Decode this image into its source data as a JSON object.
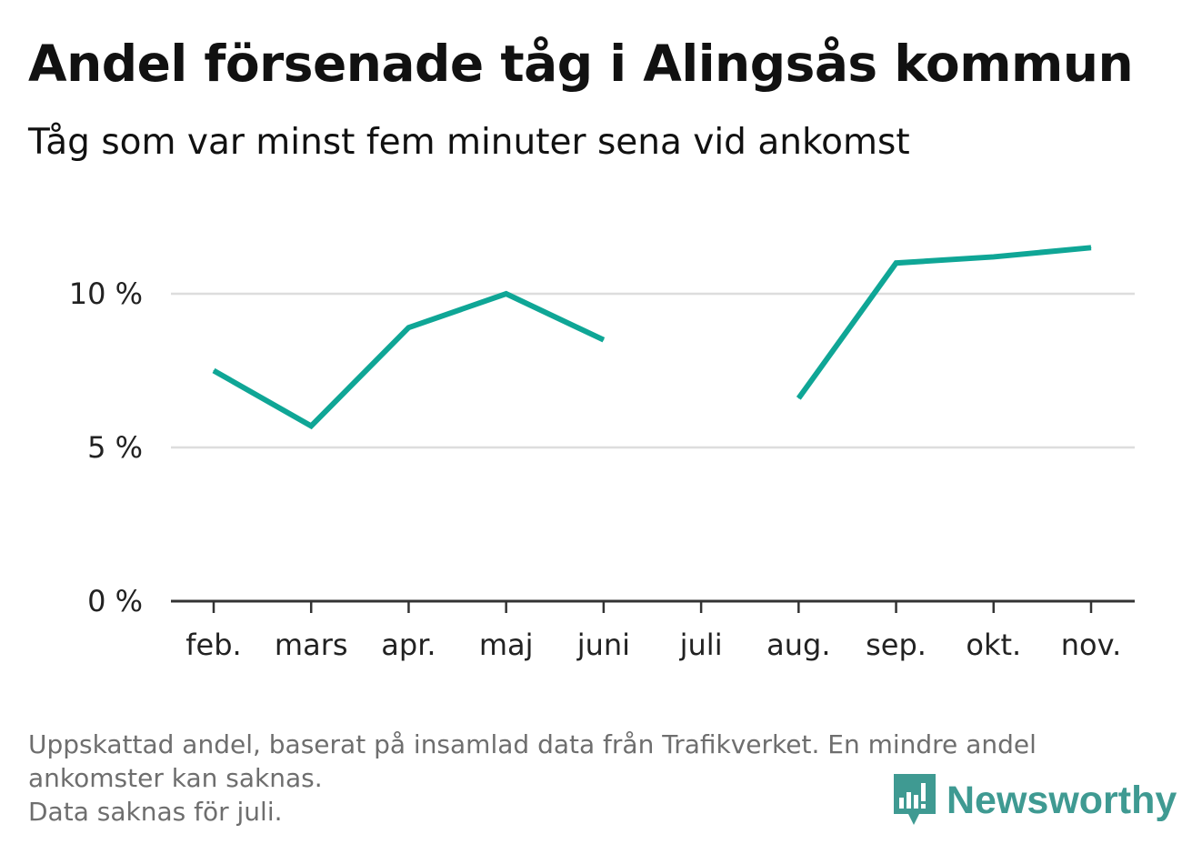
{
  "header": {
    "title": "Andel försenade tåg i Alingsås kommun",
    "subtitle": "Tåg som var minst fem minuter sena vid ankomst"
  },
  "chart_data": {
    "type": "line",
    "categories": [
      "feb.",
      "mars",
      "apr.",
      "maj",
      "juni",
      "juli",
      "aug.",
      "sep.",
      "okt.",
      "nov."
    ],
    "series": [
      {
        "values": [
          7.5,
          5.7,
          8.9,
          10.0,
          8.5,
          null,
          6.6,
          11.0,
          11.2,
          11.5
        ],
        "color": "#0fa696"
      }
    ],
    "y_ticks": [
      0,
      5,
      10
    ],
    "y_tick_labels": [
      "0 %",
      "5 %",
      "10 %"
    ],
    "ylim": [
      0,
      12
    ],
    "grid": true,
    "xlabel": "",
    "ylabel": ""
  },
  "footer": {
    "note_line1": "Uppskattad andel, baserat på insamlad data från Trafikverket. En mindre andel",
    "note_line2": "ankomster kan saknas.",
    "note_line3": "Data saknas för juli.",
    "brand": "Newsworthy",
    "brand_color": "#3f9a92"
  }
}
